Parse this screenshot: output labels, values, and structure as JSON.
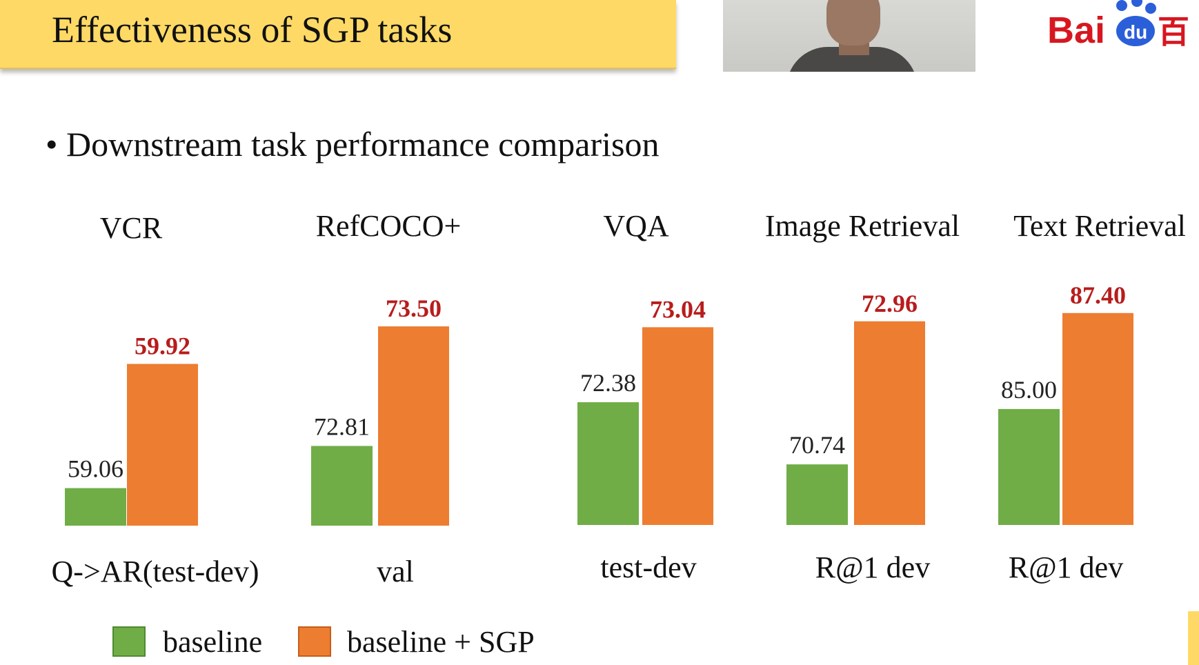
{
  "slide": {
    "title": "Effectiveness of SGP tasks",
    "bullet": "Downstream task performance comparison",
    "bullet_symbol": "•"
  },
  "logo": {
    "text_main": "Bai",
    "text_paw": "du",
    "text_cn": "百",
    "color": "#d7171f",
    "paw_color": "#2b5fd9"
  },
  "legend": {
    "baseline_label": "baseline",
    "sgp_label": "baseline + SGP"
  },
  "colors": {
    "baseline": "#70ad47",
    "sgp": "#ed7d31",
    "sgp_label": "#b81c1c",
    "title_bar": "#ffd966"
  },
  "chart_data": [
    {
      "type": "bar",
      "title": "VCR",
      "xlabel": "Q->AR(test-dev)",
      "series": [
        {
          "name": "baseline",
          "values": [
            59.06
          ]
        },
        {
          "name": "baseline + SGP",
          "values": [
            59.92
          ]
        }
      ]
    },
    {
      "type": "bar",
      "title": "RefCOCO+",
      "xlabel": "val",
      "series": [
        {
          "name": "baseline",
          "values": [
            72.81
          ]
        },
        {
          "name": "baseline + SGP",
          "values": [
            73.5
          ]
        }
      ]
    },
    {
      "type": "bar",
      "title": "VQA",
      "xlabel": "test-dev",
      "series": [
        {
          "name": "baseline",
          "values": [
            72.38
          ]
        },
        {
          "name": "baseline + SGP",
          "values": [
            73.04
          ]
        }
      ]
    },
    {
      "type": "bar",
      "title": "Image Retrieval",
      "xlabel": "R@1 dev",
      "series": [
        {
          "name": "baseline",
          "values": [
            70.74
          ]
        },
        {
          "name": "baseline + SGP",
          "values": [
            72.96
          ]
        }
      ]
    },
    {
      "type": "bar",
      "title": "Text Retrieval",
      "xlabel": "R@1 dev",
      "series": [
        {
          "name": "baseline",
          "values": [
            85.0
          ]
        },
        {
          "name": "baseline + SGP",
          "values": [
            87.4
          ]
        }
      ]
    }
  ]
}
